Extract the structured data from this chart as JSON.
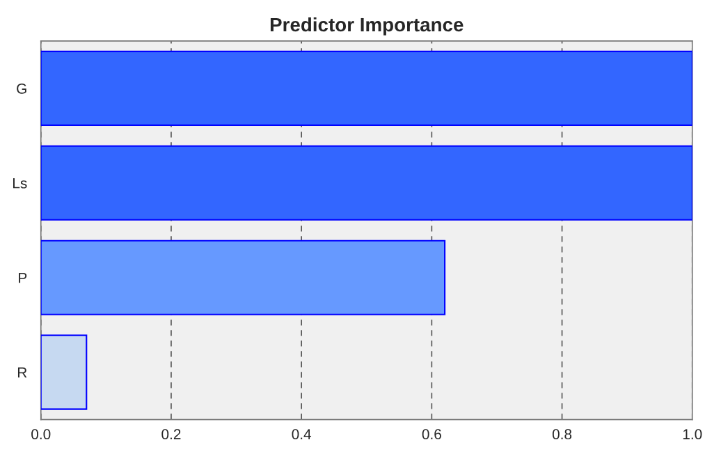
{
  "chart_data": {
    "type": "bar",
    "orientation": "horizontal",
    "title": "Predictor Importance",
    "categories": [
      "G",
      "Ls",
      "P",
      "R"
    ],
    "values": [
      1.0,
      1.0,
      0.62,
      0.07
    ],
    "colors": [
      "#3366ff",
      "#3366ff",
      "#6699ff",
      "#c6d9f1"
    ],
    "xlim": [
      0,
      1.0
    ],
    "xticks": [
      {
        "value": 0,
        "label": "0.0"
      },
      0.2,
      0.4,
      0.6,
      0.8,
      {
        "value": 1,
        "label": "1.0"
      }
    ],
    "grid": "x",
    "legend": false
  }
}
